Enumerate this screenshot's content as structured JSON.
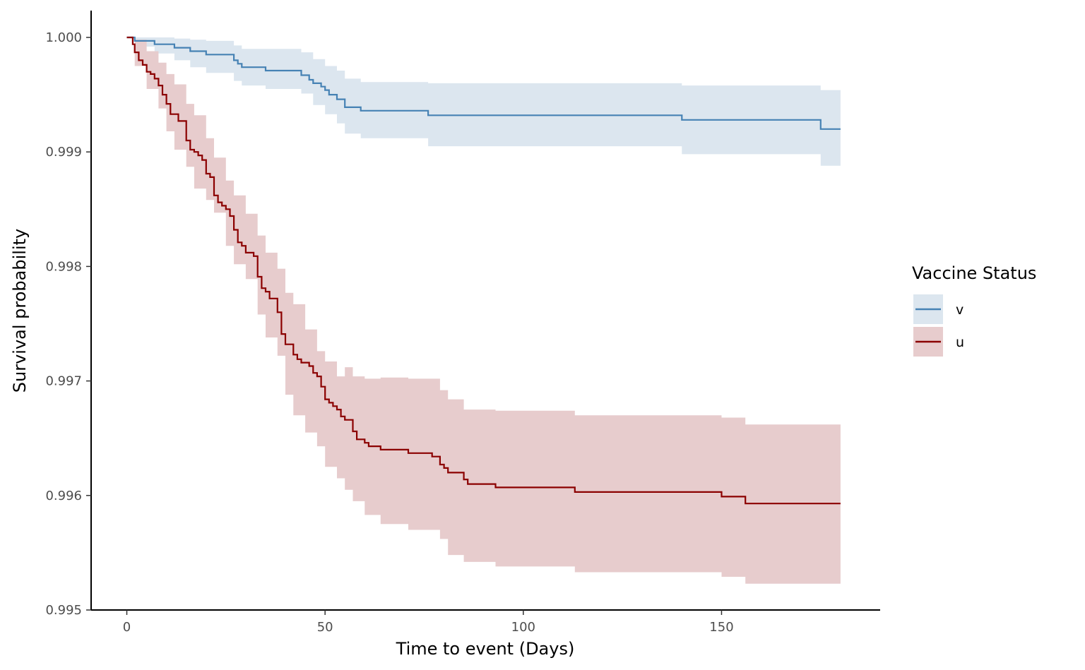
{
  "chart_data": {
    "type": "line",
    "subtype": "kaplan-meier step survival curves with confidence bands",
    "xlabel": "Time to event (Days)",
    "ylabel": "Survival probability",
    "xlim": [
      -9,
      190
    ],
    "ylim": [
      0.995,
      1.0
    ],
    "x_ticks": [
      0,
      50,
      100,
      150
    ],
    "x_tick_labels": [
      "0",
      "50",
      "100",
      "150"
    ],
    "y_ticks": [
      0.995,
      0.996,
      0.997,
      0.998,
      0.999,
      1.0
    ],
    "y_tick_labels": [
      "0.995",
      "0.996",
      "0.997",
      "0.998",
      "0.999",
      "1.000"
    ],
    "grid": false,
    "legend": {
      "title": "Vaccine Status",
      "position": "right",
      "entries": [
        "v",
        "u"
      ]
    },
    "series": [
      {
        "name": "v",
        "color": "#4682B4",
        "band_color": "#DCE6EF",
        "steps": [
          [
            0,
            1.0
          ],
          [
            2,
            0.99997
          ],
          [
            7,
            0.99994
          ],
          [
            12,
            0.99991
          ],
          [
            16,
            0.99988
          ],
          [
            20,
            0.99985
          ],
          [
            27,
            0.9998
          ],
          [
            28,
            0.99977
          ],
          [
            29,
            0.99974
          ],
          [
            35,
            0.99971
          ],
          [
            44,
            0.99967
          ],
          [
            46,
            0.99963
          ],
          [
            47,
            0.9996
          ],
          [
            49,
            0.99957
          ],
          [
            50,
            0.99954
          ],
          [
            51,
            0.9995
          ],
          [
            53,
            0.99946
          ],
          [
            55,
            0.99939
          ],
          [
            59,
            0.99936
          ],
          [
            76,
            0.99932
          ],
          [
            140,
            0.99928
          ],
          [
            175,
            0.9992
          ],
          [
            180,
            0.9992
          ]
        ],
        "ci_lower": [
          [
            0,
            1.0
          ],
          [
            2,
            0.99992
          ],
          [
            7,
            0.99986
          ],
          [
            12,
            0.9998
          ],
          [
            16,
            0.99974
          ],
          [
            20,
            0.99969
          ],
          [
            27,
            0.99962
          ],
          [
            29,
            0.99958
          ],
          [
            35,
            0.99955
          ],
          [
            44,
            0.99951
          ],
          [
            47,
            0.99941
          ],
          [
            50,
            0.99933
          ],
          [
            53,
            0.99925
          ],
          [
            55,
            0.99916
          ],
          [
            59,
            0.99912
          ],
          [
            76,
            0.99905
          ],
          [
            140,
            0.99898
          ],
          [
            175,
            0.99888
          ],
          [
            180,
            0.99888
          ]
        ],
        "ci_upper": [
          [
            0,
            1.0
          ],
          [
            2,
            1.0
          ],
          [
            12,
            0.99999
          ],
          [
            16,
            0.99998
          ],
          [
            20,
            0.99997
          ],
          [
            27,
            0.99993
          ],
          [
            29,
            0.9999
          ],
          [
            44,
            0.99987
          ],
          [
            47,
            0.99981
          ],
          [
            50,
            0.99975
          ],
          [
            53,
            0.99971
          ],
          [
            55,
            0.99964
          ],
          [
            59,
            0.99961
          ],
          [
            76,
            0.9996
          ],
          [
            140,
            0.99958
          ],
          [
            175,
            0.99954
          ],
          [
            180,
            0.99954
          ]
        ]
      },
      {
        "name": "u",
        "color": "#8B0000",
        "band_color": "#E7CCCD",
        "steps": [
          [
            0,
            1.0
          ],
          [
            1.5,
            0.99994
          ],
          [
            2,
            0.99987
          ],
          [
            3,
            0.9998
          ],
          [
            4,
            0.99976
          ],
          [
            5,
            0.9997
          ],
          [
            6,
            0.99968
          ],
          [
            7,
            0.99964
          ],
          [
            8,
            0.99958
          ],
          [
            9,
            0.9995
          ],
          [
            10,
            0.99942
          ],
          [
            11,
            0.99933
          ],
          [
            13,
            0.99927
          ],
          [
            15,
            0.9991
          ],
          [
            16,
            0.99902
          ],
          [
            17,
            0.999
          ],
          [
            18,
            0.99897
          ],
          [
            19,
            0.99893
          ],
          [
            20,
            0.99881
          ],
          [
            21,
            0.99878
          ],
          [
            22,
            0.99862
          ],
          [
            23,
            0.99856
          ],
          [
            24,
            0.99853
          ],
          [
            25,
            0.9985
          ],
          [
            26,
            0.99844
          ],
          [
            27,
            0.99832
          ],
          [
            28,
            0.99821
          ],
          [
            29,
            0.99818
          ],
          [
            30,
            0.99812
          ],
          [
            32,
            0.99809
          ],
          [
            33,
            0.99791
          ],
          [
            34,
            0.99781
          ],
          [
            35,
            0.99778
          ],
          [
            36,
            0.99772
          ],
          [
            38,
            0.9976
          ],
          [
            39,
            0.99741
          ],
          [
            40,
            0.99732
          ],
          [
            42,
            0.99723
          ],
          [
            43,
            0.99719
          ],
          [
            44,
            0.99716
          ],
          [
            46,
            0.99713
          ],
          [
            47,
            0.99707
          ],
          [
            48,
            0.99704
          ],
          [
            49,
            0.99695
          ],
          [
            50,
            0.99684
          ],
          [
            51,
            0.99681
          ],
          [
            52,
            0.99678
          ],
          [
            53,
            0.99675
          ],
          [
            54,
            0.99669
          ],
          [
            55,
            0.99666
          ],
          [
            57,
            0.99656
          ],
          [
            58,
            0.99649
          ],
          [
            60,
            0.99646
          ],
          [
            61,
            0.99643
          ],
          [
            64,
            0.9964
          ],
          [
            71,
            0.99637
          ],
          [
            77,
            0.99634
          ],
          [
            79,
            0.99627
          ],
          [
            80,
            0.99624
          ],
          [
            81,
            0.9962
          ],
          [
            85,
            0.99614
          ],
          [
            86,
            0.9961
          ],
          [
            93,
            0.99607
          ],
          [
            113,
            0.99603
          ],
          [
            150,
            0.99599
          ],
          [
            156,
            0.99593
          ],
          [
            180,
            0.99593
          ]
        ],
        "ci_lower": [
          [
            0,
            1.0
          ],
          [
            2,
            0.99975
          ],
          [
            5,
            0.99955
          ],
          [
            8,
            0.99938
          ],
          [
            10,
            0.99918
          ],
          [
            12,
            0.99902
          ],
          [
            15,
            0.99887
          ],
          [
            17,
            0.99868
          ],
          [
            20,
            0.99858
          ],
          [
            22,
            0.99847
          ],
          [
            25,
            0.99818
          ],
          [
            27,
            0.99802
          ],
          [
            30,
            0.99789
          ],
          [
            33,
            0.99758
          ],
          [
            35,
            0.99738
          ],
          [
            38,
            0.99722
          ],
          [
            40,
            0.99688
          ],
          [
            42,
            0.9967
          ],
          [
            45,
            0.99655
          ],
          [
            48,
            0.99643
          ],
          [
            50,
            0.99625
          ],
          [
            53,
            0.99615
          ],
          [
            55,
            0.99605
          ],
          [
            57,
            0.99595
          ],
          [
            60,
            0.99583
          ],
          [
            64,
            0.99575
          ],
          [
            71,
            0.9957
          ],
          [
            79,
            0.99562
          ],
          [
            81,
            0.99548
          ],
          [
            85,
            0.99542
          ],
          [
            93,
            0.99538
          ],
          [
            113,
            0.99533
          ],
          [
            150,
            0.99529
          ],
          [
            156,
            0.99523
          ],
          [
            180,
            0.99523
          ]
        ],
        "ci_upper": [
          [
            0,
            1.0
          ],
          [
            2,
            0.99998
          ],
          [
            5,
            0.99988
          ],
          [
            8,
            0.99978
          ],
          [
            10,
            0.99968
          ],
          [
            12,
            0.99959
          ],
          [
            15,
            0.99942
          ],
          [
            17,
            0.99932
          ],
          [
            20,
            0.99912
          ],
          [
            22,
            0.99895
          ],
          [
            25,
            0.99875
          ],
          [
            27,
            0.99862
          ],
          [
            30,
            0.99846
          ],
          [
            33,
            0.99827
          ],
          [
            35,
            0.99812
          ],
          [
            38,
            0.99798
          ],
          [
            40,
            0.99777
          ],
          [
            42,
            0.99767
          ],
          [
            45,
            0.99745
          ],
          [
            48,
            0.99726
          ],
          [
            50,
            0.99717
          ],
          [
            53,
            0.99704
          ],
          [
            55,
            0.99712
          ],
          [
            57,
            0.99704
          ],
          [
            60,
            0.99702
          ],
          [
            64,
            0.99703
          ],
          [
            71,
            0.99702
          ],
          [
            79,
            0.99692
          ],
          [
            81,
            0.99684
          ],
          [
            85,
            0.99675
          ],
          [
            93,
            0.99674
          ],
          [
            113,
            0.9967
          ],
          [
            150,
            0.99668
          ],
          [
            156,
            0.99662
          ],
          [
            180,
            0.99662
          ]
        ]
      }
    ]
  }
}
